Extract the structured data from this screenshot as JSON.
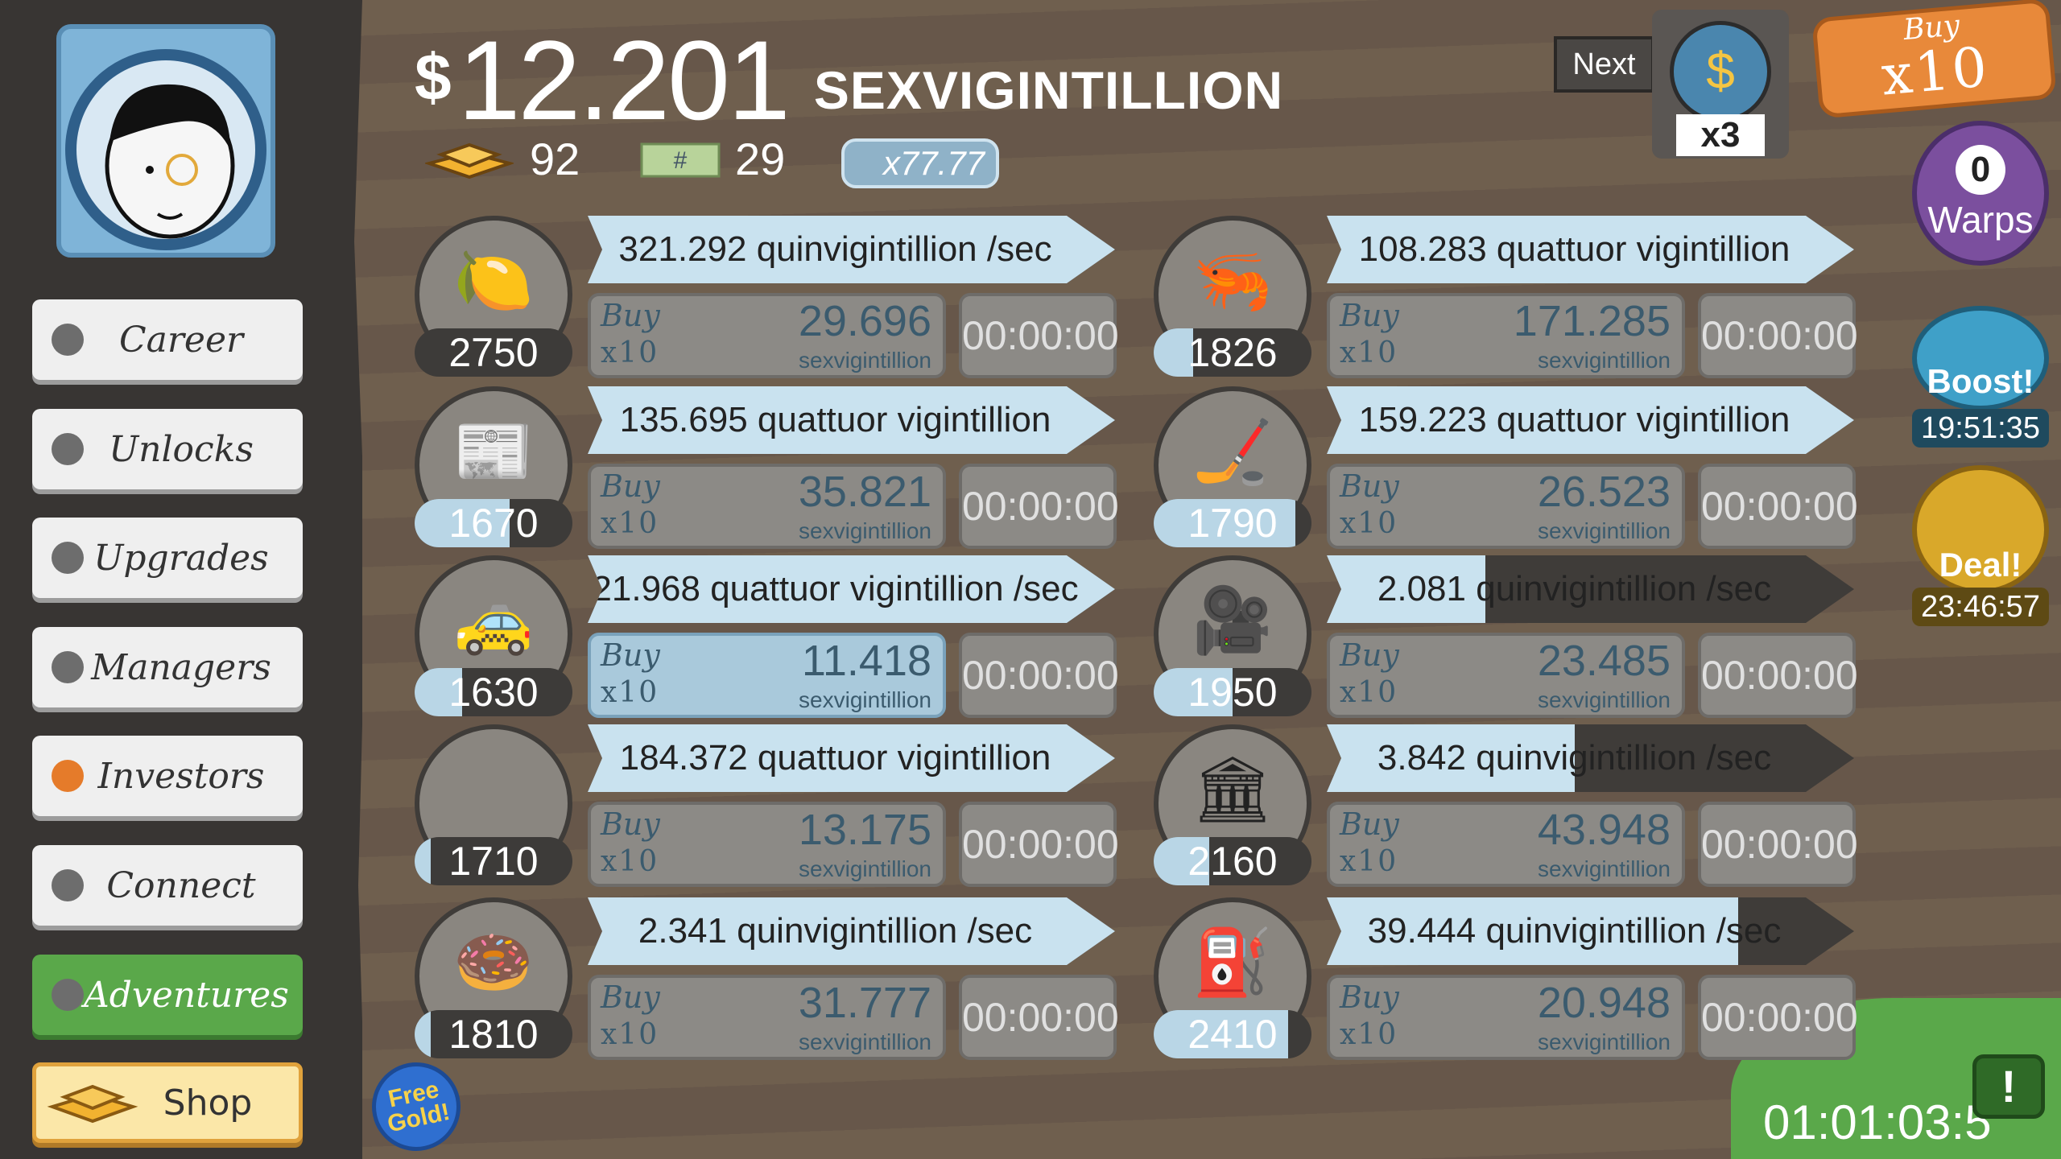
{
  "header": {
    "currency_symbol": "$",
    "money_amount": "12.201",
    "money_unit": "SEXVIGINTILLION",
    "gold_count": "92",
    "megabucks_count": "29",
    "megabucks_multiplier": "x77.77",
    "next_label": "Next",
    "next_multiplier": "x3",
    "buy_label": "Buy",
    "buy_multiplier": "x10"
  },
  "sidebar": {
    "items": [
      {
        "label": "Career"
      },
      {
        "label": "Unlocks"
      },
      {
        "label": "Upgrades"
      },
      {
        "label": "Managers"
      },
      {
        "label": "Investors"
      },
      {
        "label": "Connect"
      },
      {
        "label": "Adventures"
      },
      {
        "label": "Shop"
      }
    ],
    "free_gold_label": "Free Gold!"
  },
  "right_panel": {
    "warps_count": "0",
    "warps_label": "Warps",
    "boost_label": "Boost!",
    "boost_timer": "19:51:35",
    "deal_label": "Deal!",
    "deal_timer": "23:46:57",
    "tv_timer": "01:01:03:5",
    "colors": {
      "warps": "#7b4f9e",
      "boost": "#3fa0c8",
      "deal": "#d9a82a",
      "tv": "#5aa84a"
    }
  },
  "businesses": [
    {
      "icon": "lemon-icon",
      "count": "2750",
      "rate": "321.292 quinvigintillion /sec",
      "progress": 1.0,
      "count_progress": 0.0,
      "buy": "Buy",
      "buy_mult": "x10",
      "cost": "29.696",
      "cost_unit": "sexvigintillion",
      "timer": "00:00:00",
      "active": false
    },
    {
      "icon": "shrimp-icon",
      "count": "1826",
      "rate": "108.283 quattuor vigintillion /sec",
      "progress": 1.0,
      "count_progress": 0.25,
      "buy": "Buy",
      "buy_mult": "x10",
      "cost": "171.285",
      "cost_unit": "sexvigintillion",
      "timer": "00:00:00",
      "active": false
    },
    {
      "icon": "newspaper-icon",
      "count": "1670",
      "rate": "135.695 quattuor vigintillion /sec",
      "progress": 1.0,
      "count_progress": 0.6,
      "buy": "Buy",
      "buy_mult": "x10",
      "cost": "35.821",
      "cost_unit": "sexvigintillion",
      "timer": "00:00:00",
      "active": false
    },
    {
      "icon": "hockey-icon",
      "count": "1790",
      "rate": "159.223 quattuor vigintillion /sec",
      "progress": 1.0,
      "count_progress": 0.9,
      "buy": "Buy",
      "buy_mult": "x10",
      "cost": "26.523",
      "cost_unit": "sexvigintillion",
      "timer": "00:00:00",
      "active": false
    },
    {
      "icon": "car-icon",
      "count": "1630",
      "rate": "21.968 quattuor vigintillion /sec",
      "progress": 1.0,
      "count_progress": 0.3,
      "buy": "Buy",
      "buy_mult": "x10",
      "cost": "11.418",
      "cost_unit": "sexvigintillion",
      "timer": "00:00:00",
      "active": true
    },
    {
      "icon": "movie-camera-icon",
      "count": "1950",
      "rate": "2.081 quinvigintillion /sec",
      "progress": 0.3,
      "count_progress": 0.5,
      "buy": "Buy",
      "buy_mult": "x10",
      "cost": "23.485",
      "cost_unit": "sexvigintillion",
      "timer": "00:00:00",
      "active": false
    },
    {
      "icon": "pizza-icon",
      "count": "1710",
      "rate": "184.372 quattuor vigintillion /sec",
      "progress": 1.0,
      "count_progress": 0.1,
      "buy": "Buy",
      "buy_mult": "x10",
      "cost": "13.175",
      "cost_unit": "sexvigintillion",
      "timer": "00:00:00",
      "active": false
    },
    {
      "icon": "bank-icon",
      "count": "2160",
      "rate": "3.842 quinvigintillion /sec",
      "progress": 0.47,
      "count_progress": 0.35,
      "buy": "Buy",
      "buy_mult": "x10",
      "cost": "43.948",
      "cost_unit": "sexvigintillion",
      "timer": "00:00:00",
      "active": false
    },
    {
      "icon": "donut-icon",
      "count": "1810",
      "rate": "2.341 quinvigintillion /sec",
      "progress": 1.0,
      "count_progress": 0.1,
      "buy": "Buy",
      "buy_mult": "x10",
      "cost": "31.777",
      "cost_unit": "sexvigintillion",
      "timer": "00:00:00",
      "active": false
    },
    {
      "icon": "oil-rig-icon",
      "count": "2410",
      "rate": "39.444 quinvigintillion /sec",
      "progress": 0.78,
      "count_progress": 0.85,
      "buy": "Buy",
      "buy_mult": "x10",
      "cost": "20.948",
      "cost_unit": "sexvigintillion",
      "timer": "00:00:00",
      "active": false
    }
  ]
}
